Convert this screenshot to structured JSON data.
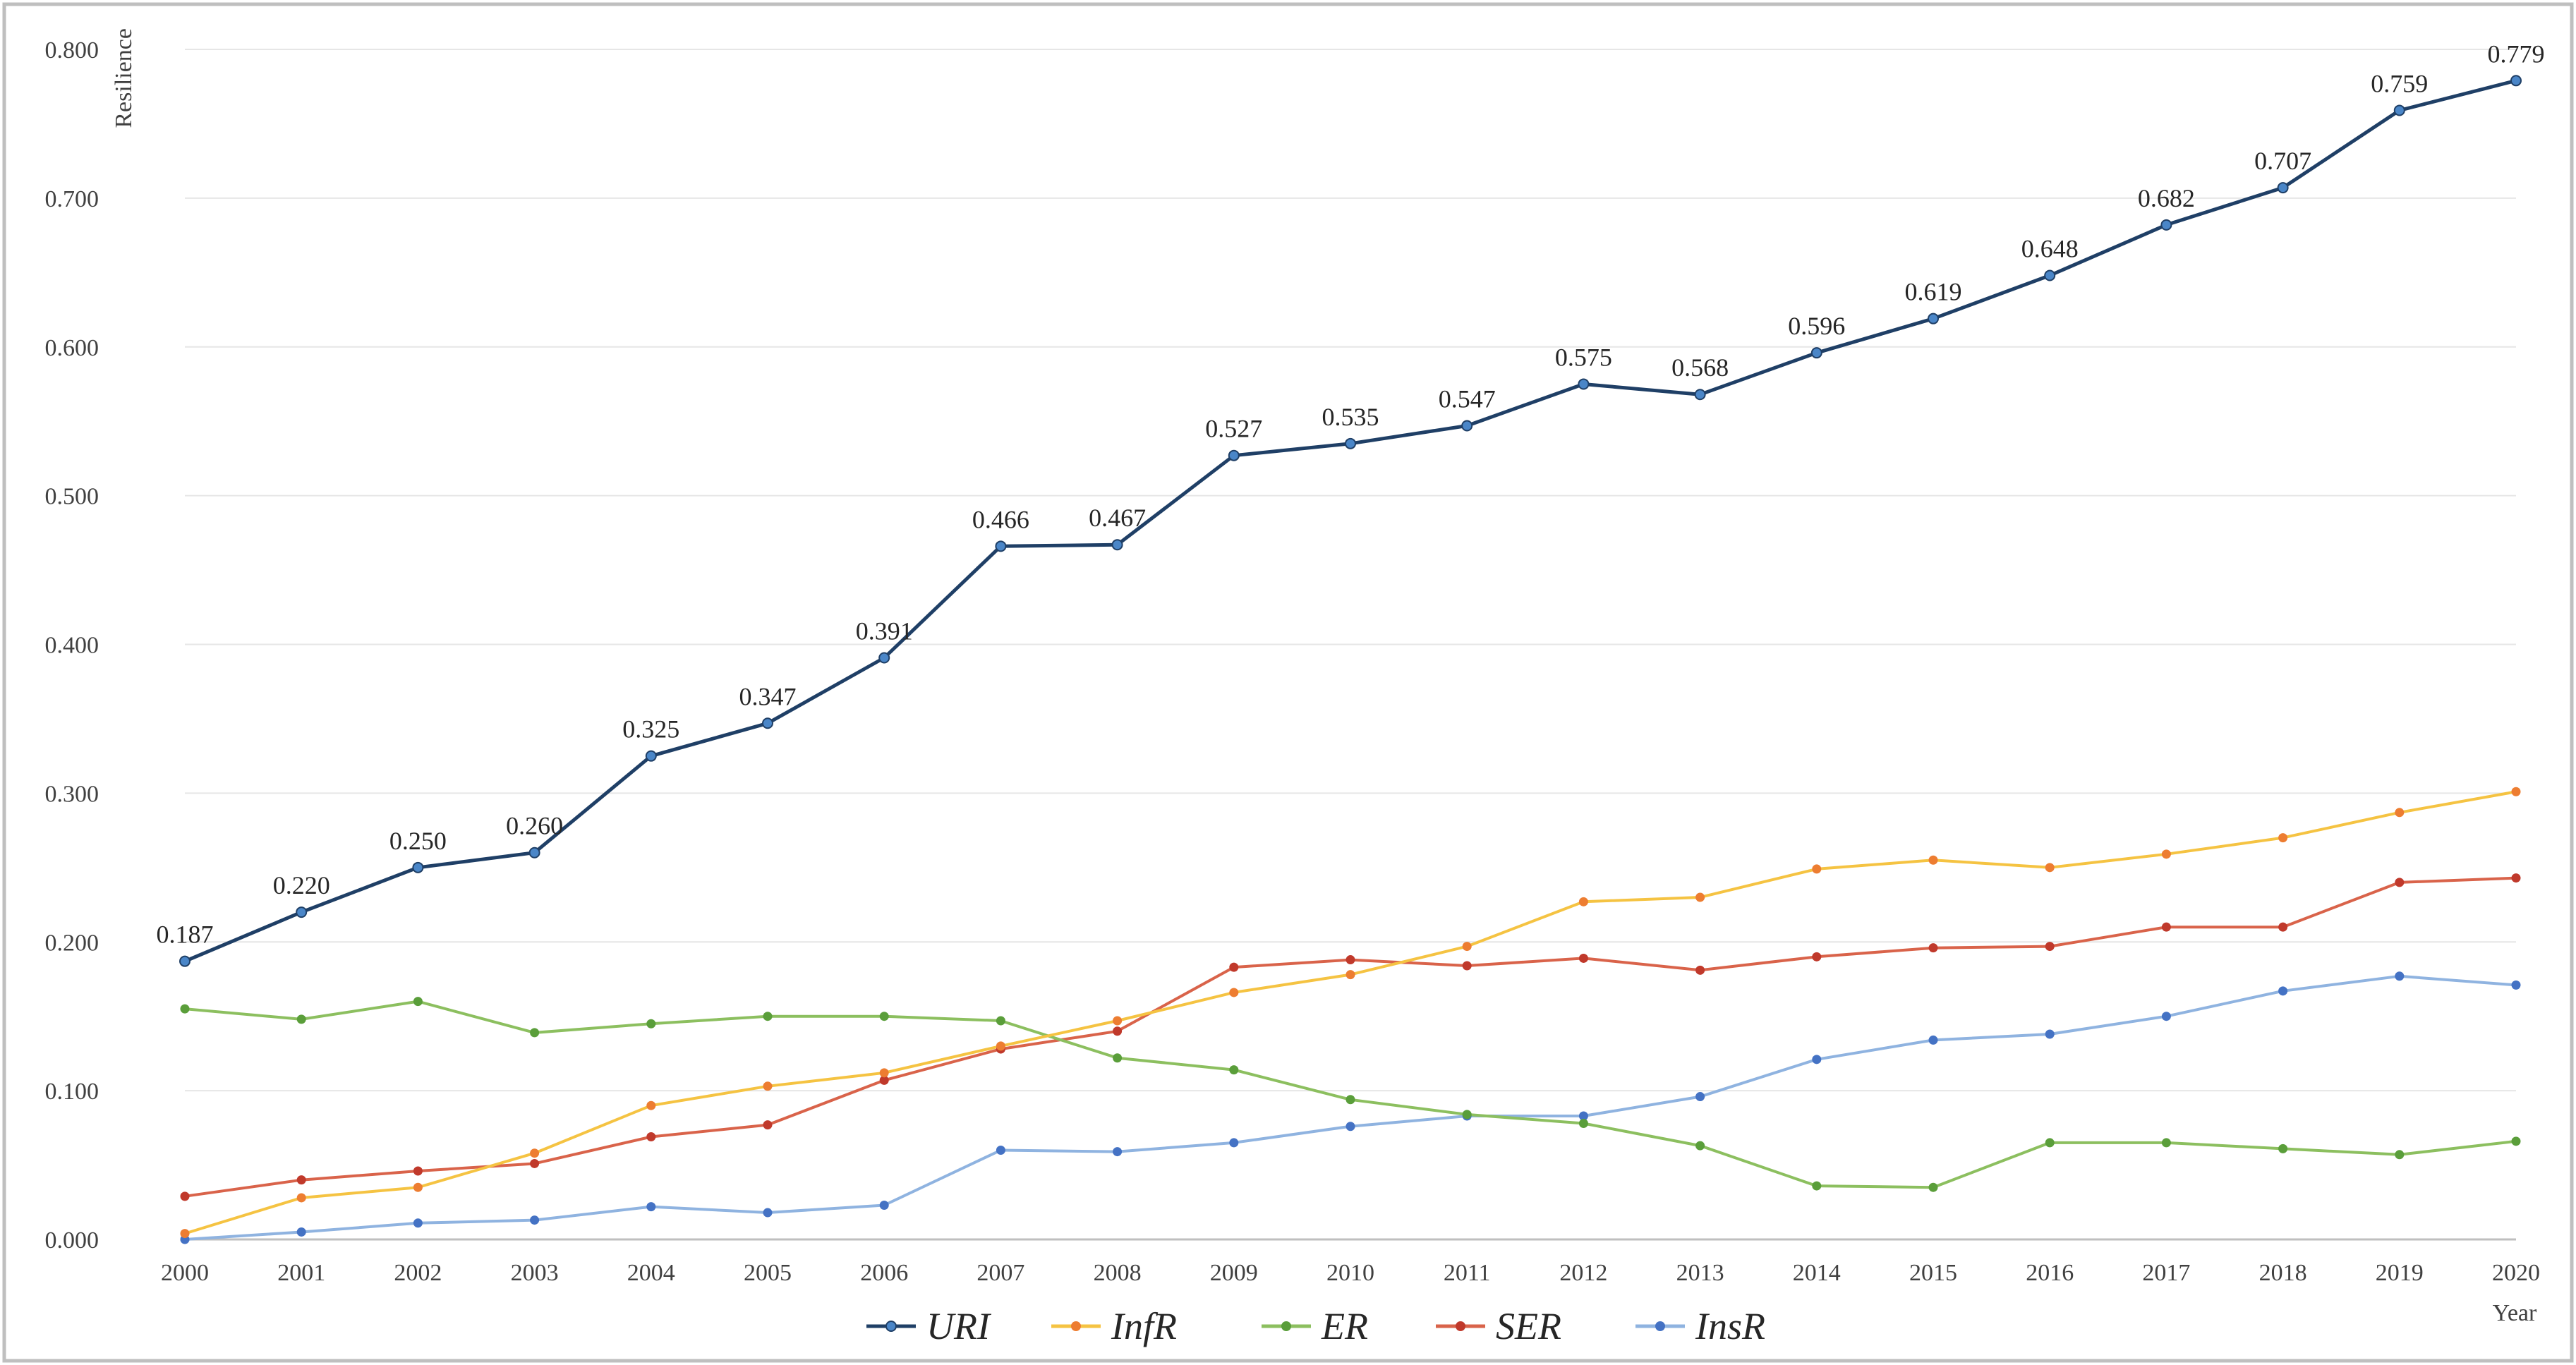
{
  "chart_data": {
    "type": "line",
    "title": "",
    "xlabel": "Year",
    "ylabel": "Resilience",
    "ylim": [
      0,
      0.8
    ],
    "y_ticks": [
      "0.000",
      "0.100",
      "0.200",
      "0.300",
      "0.400",
      "0.500",
      "0.600",
      "0.700",
      "0.800"
    ],
    "y_tick_values": [
      0,
      0.1,
      0.2,
      0.3,
      0.4,
      0.5,
      0.6,
      0.7,
      0.8
    ],
    "grid": true,
    "legend_position": "bottom",
    "categories": [
      "2000",
      "2001",
      "2002",
      "2003",
      "2004",
      "2005",
      "2006",
      "2007",
      "2008",
      "2009",
      "2010",
      "2011",
      "2012",
      "2013",
      "2014",
      "2015",
      "2016",
      "2017",
      "2018",
      "2019",
      "2020"
    ],
    "series": [
      {
        "name": "URI",
        "color": "#1f3f66",
        "marker_color": "#4a86c8",
        "show_labels": true,
        "values": [
          0.187,
          0.22,
          0.25,
          0.26,
          0.325,
          0.347,
          0.391,
          0.466,
          0.467,
          0.527,
          0.535,
          0.547,
          0.575,
          0.568,
          0.596,
          0.619,
          0.648,
          0.682,
          0.707,
          0.759,
          0.779
        ],
        "labels": [
          "0.187",
          "0.220",
          "0.250",
          "0.260",
          "0.325",
          "0.347",
          "0.391",
          "0.466",
          "0.467",
          "0.527",
          "0.535",
          "0.547",
          "0.575",
          "0.568",
          "0.596",
          "0.619",
          "0.648",
          "0.682",
          "0.707",
          "0.759",
          "0.779"
        ]
      },
      {
        "name": "InfR",
        "color": "#f5c342",
        "marker_color": "#ed7d31",
        "show_labels": false,
        "values": [
          0.004,
          0.028,
          0.035,
          0.058,
          0.09,
          0.103,
          0.112,
          0.13,
          0.147,
          0.166,
          0.178,
          0.197,
          0.227,
          0.23,
          0.249,
          0.255,
          0.25,
          0.259,
          0.27,
          0.287,
          0.301
        ]
      },
      {
        "name": "ER",
        "color": "#8cbf5f",
        "marker_color": "#5a9e3a",
        "show_labels": false,
        "values": [
          0.155,
          0.148,
          0.16,
          0.139,
          0.145,
          0.15,
          0.15,
          0.147,
          0.122,
          0.114,
          0.094,
          0.084,
          0.078,
          0.063,
          0.036,
          0.035,
          0.065,
          0.065,
          0.061,
          0.057,
          0.066
        ]
      },
      {
        "name": "SER",
        "color": "#d9634a",
        "marker_color": "#c0392b",
        "show_labels": false,
        "values": [
          0.029,
          0.04,
          0.046,
          0.051,
          0.069,
          0.077,
          0.107,
          0.128,
          0.14,
          0.183,
          0.188,
          0.184,
          0.189,
          0.181,
          0.19,
          0.196,
          0.197,
          0.21,
          0.21,
          0.24,
          0.243
        ]
      },
      {
        "name": "InsR",
        "color": "#8fb3e0",
        "marker_color": "#4472c4",
        "show_labels": false,
        "values": [
          0.0,
          0.005,
          0.011,
          0.013,
          0.022,
          0.018,
          0.023,
          0.06,
          0.059,
          0.065,
          0.076,
          0.083,
          0.083,
          0.096,
          0.121,
          0.134,
          0.138,
          0.15,
          0.167,
          0.177,
          0.171
        ]
      }
    ]
  }
}
